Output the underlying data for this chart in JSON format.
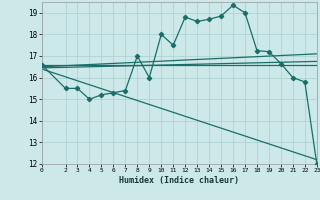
{
  "xlabel": "Humidex (Indice chaleur)",
  "background_color": "#cce8e8",
  "grid_color": "#aacfcf",
  "line_color": "#1a6e6a",
  "xlim": [
    0,
    23
  ],
  "ylim": [
    12,
    19.5
  ],
  "xticks": [
    0,
    2,
    3,
    4,
    5,
    6,
    7,
    8,
    9,
    10,
    11,
    12,
    13,
    14,
    15,
    16,
    17,
    18,
    19,
    20,
    21,
    22,
    23
  ],
  "yticks": [
    12,
    13,
    14,
    15,
    16,
    17,
    18,
    19
  ],
  "curve_x": [
    0,
    2,
    3,
    4,
    5,
    6,
    7,
    8,
    9,
    10,
    11,
    12,
    13,
    14,
    15,
    16,
    17,
    18,
    19,
    20,
    21,
    22,
    23
  ],
  "curve_y": [
    16.6,
    15.5,
    15.5,
    15.0,
    15.2,
    15.3,
    15.4,
    17.0,
    16.0,
    18.0,
    17.5,
    18.8,
    18.6,
    18.7,
    18.85,
    19.35,
    19.0,
    17.25,
    17.2,
    16.65,
    16.0,
    15.8,
    12.0
  ],
  "line1_x": [
    0,
    23
  ],
  "line1_y": [
    16.6,
    16.6
  ],
  "line2_x": [
    0,
    23
  ],
  "line2_y": [
    16.5,
    17.1
  ],
  "line3_x": [
    0,
    23
  ],
  "line3_y": [
    16.45,
    16.75
  ],
  "line4_x": [
    0,
    23
  ],
  "line4_y": [
    16.4,
    12.2
  ]
}
